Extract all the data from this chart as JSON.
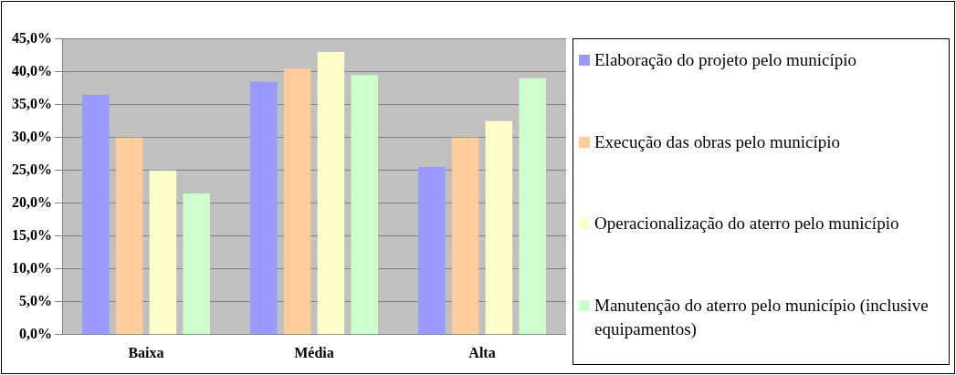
{
  "chart_data": {
    "type": "bar",
    "categories": [
      "Baixa",
      "Média",
      "Alta"
    ],
    "series": [
      {
        "name": "Elaboração do projeto pelo município",
        "color": "#9999ff",
        "values": [
          36.5,
          38.5,
          25.5
        ]
      },
      {
        "name": "Execução das obras pelo município",
        "color": "#ffcc99",
        "values": [
          30,
          40.5,
          30
        ]
      },
      {
        "name": "Operacionalização do aterro pelo município",
        "color": "#ffffcc",
        "values": [
          25,
          43,
          32.5
        ]
      },
      {
        "name": "Manutenção do aterro pelo município (inclusive equipamentos)",
        "color": "#ccffcc",
        "values": [
          21.5,
          39.5,
          39
        ]
      }
    ],
    "ylim": [
      0,
      45
    ],
    "yticks": [
      {
        "value": 0,
        "label": "0,0%"
      },
      {
        "value": 5,
        "label": "5,0%"
      },
      {
        "value": 10,
        "label": "10,0%"
      },
      {
        "value": 15,
        "label": "15,0%"
      },
      {
        "value": 20,
        "label": "20,0%"
      },
      {
        "value": 25,
        "label": "25,0%"
      },
      {
        "value": 30,
        "label": "30,0%"
      },
      {
        "value": 35,
        "label": "35,0%"
      },
      {
        "value": 40,
        "label": "40,0%"
      },
      {
        "value": 45,
        "label": "45,0%"
      }
    ],
    "grid": "y",
    "legend": "right"
  }
}
